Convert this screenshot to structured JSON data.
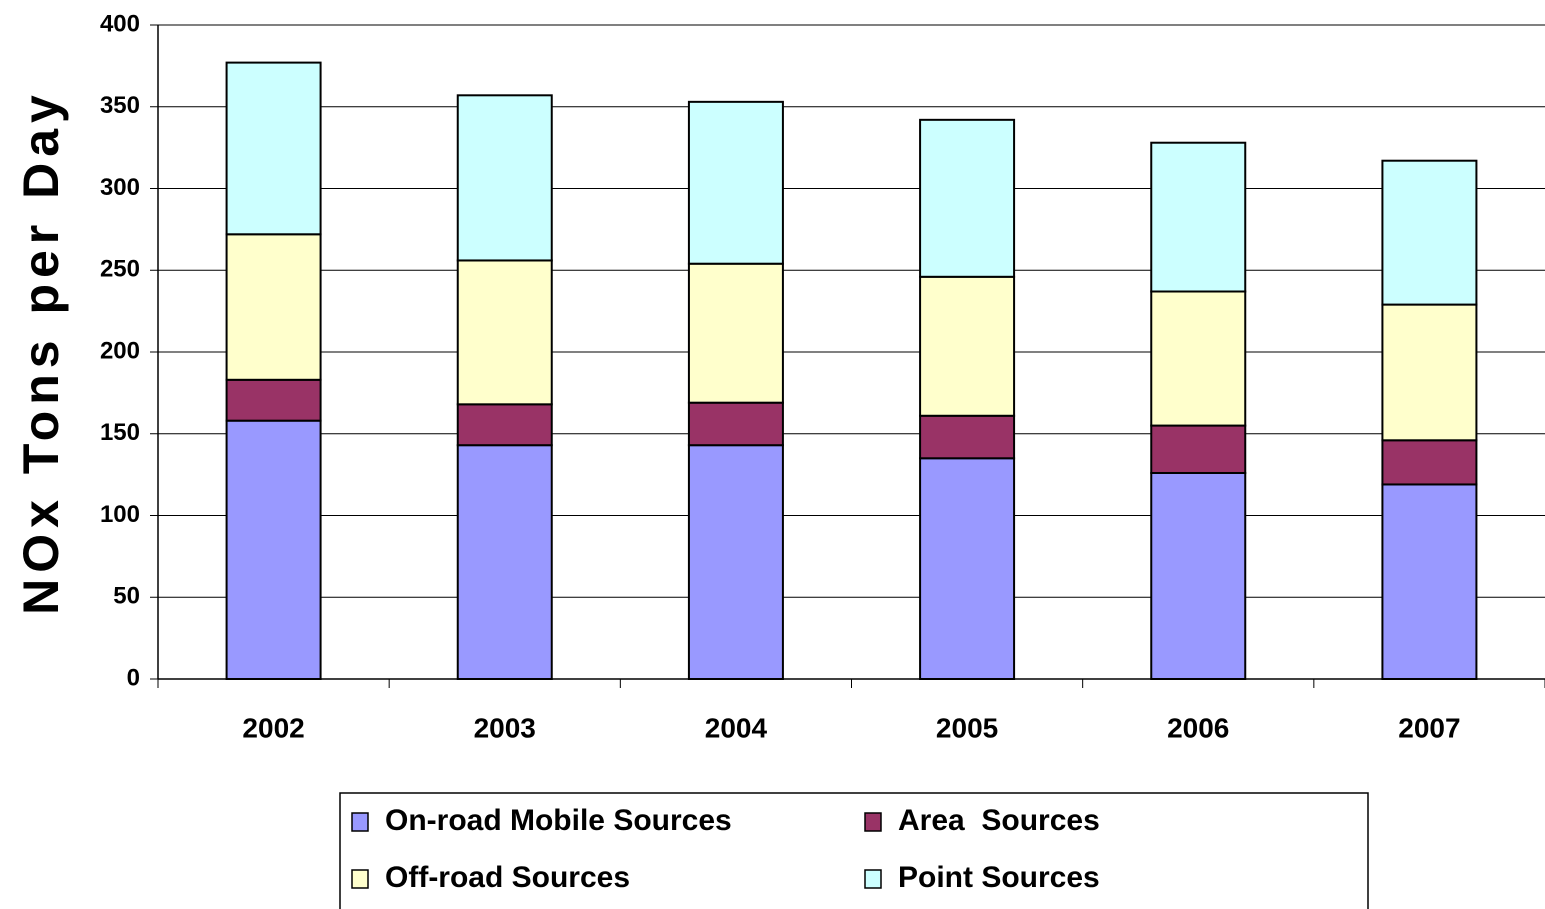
{
  "chart_data": {
    "type": "stacked_bar",
    "y_label": "NOx Tons per Day",
    "categories": [
      "2002",
      "2003",
      "2004",
      "2005",
      "2006",
      "2007"
    ],
    "series": [
      {
        "name": "On-road Mobile Sources",
        "color": "#9999ff",
        "values": [
          158,
          143,
          143,
          135,
          126,
          119
        ]
      },
      {
        "name": "Area  Sources",
        "color": "#993366",
        "values": [
          25,
          25,
          26,
          26,
          29,
          27
        ]
      },
      {
        "name": "Off-road Sources",
        "color": "#ffffcc",
        "values": [
          89,
          88,
          85,
          85,
          82,
          83
        ]
      },
      {
        "name": "Point Sources",
        "color": "#ccffff",
        "values": [
          105,
          101,
          99,
          96,
          91,
          88
        ]
      }
    ],
    "ylim": [
      0,
      400
    ],
    "yticks": [
      0,
      50,
      100,
      150,
      200,
      250,
      300,
      350,
      400
    ],
    "grid": true
  }
}
